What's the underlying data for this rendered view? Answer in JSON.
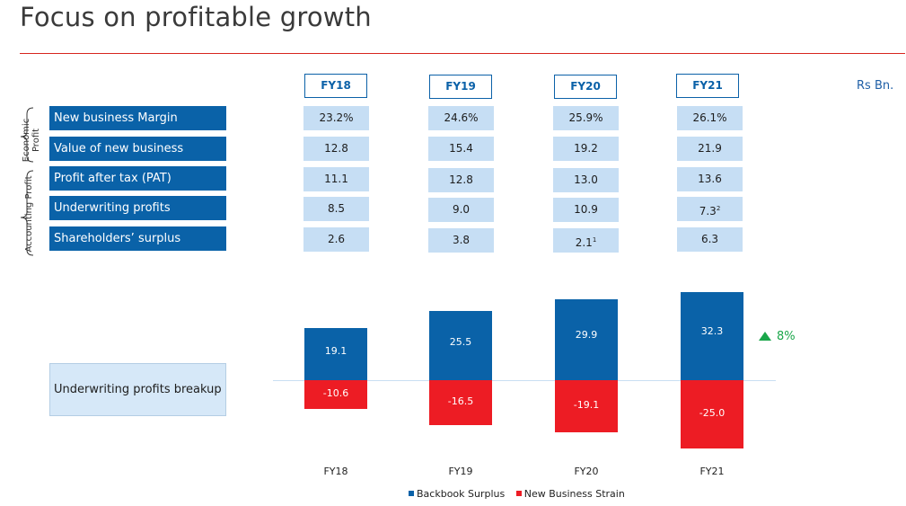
{
  "title": "Focus on profitable growth",
  "unit_label": "Rs Bn.",
  "years": [
    "FY18",
    "FY19",
    "FY20",
    "FY21"
  ],
  "groups": {
    "economic": "Economic Profit",
    "accounting": "Accounting Profit"
  },
  "table": [
    {
      "label": "New business Margin",
      "values": [
        "23.2%",
        "24.6%",
        "25.9%",
        "26.1%"
      ],
      "notes": [
        "",
        "",
        "",
        ""
      ]
    },
    {
      "label": "Value of new business",
      "values": [
        "12.8",
        "15.4",
        "19.2",
        "21.9"
      ],
      "notes": [
        "",
        "",
        "",
        ""
      ]
    },
    {
      "label": "Profit after tax (PAT)",
      "values": [
        "11.1",
        "12.8",
        "13.0",
        "13.6"
      ],
      "notes": [
        "",
        "",
        "",
        ""
      ]
    },
    {
      "label": "Underwriting profits",
      "values": [
        "8.5",
        "9.0",
        "10.9",
        "7.3"
      ],
      "notes": [
        "",
        "",
        "",
        "2"
      ]
    },
    {
      "label": "Shareholders’ surplus",
      "values": [
        "2.6",
        "3.8",
        "2.1",
        "6.3"
      ],
      "notes": [
        "",
        "",
        "1",
        ""
      ]
    }
  ],
  "breakup_label": "Underwriting profits breakup",
  "growth_label": "8%",
  "colors": {
    "backbook": "#0a62a8",
    "strain": "#ed1c24",
    "growth": "#1aa64a"
  },
  "chart_data": {
    "type": "bar",
    "categories": [
      "FY18",
      "FY19",
      "FY20",
      "FY21"
    ],
    "series": [
      {
        "name": "Backbook Surplus",
        "values": [
          19.1,
          25.5,
          29.9,
          32.3
        ]
      },
      {
        "name": "New Business Strain",
        "values": [
          -10.6,
          -16.5,
          -19.1,
          -25.0
        ]
      }
    ],
    "value_labels": {
      "Backbook Surplus": [
        "19.1",
        "25.5",
        "29.9",
        "32.3"
      ],
      "New Business Strain": [
        "-10.6",
        "-16.5",
        "-19.1",
        "-25.0"
      ]
    },
    "annotation": "8%",
    "legend_position": "bottom",
    "grid": false
  }
}
